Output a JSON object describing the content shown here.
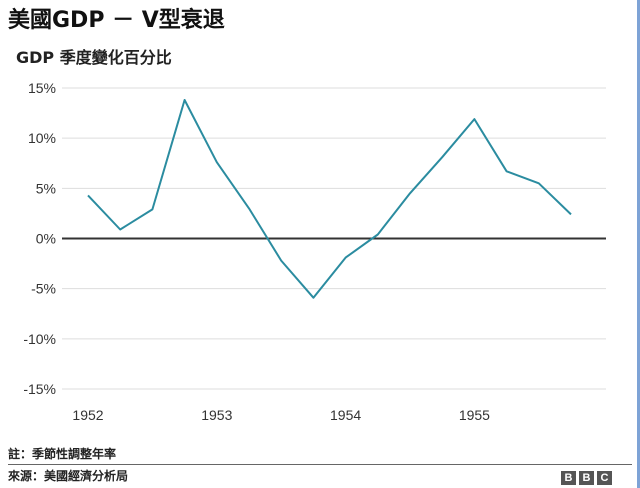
{
  "title": "美國GDP － V型衰退",
  "subtitle": "GDP 季度變化百分比",
  "note": "註：季節性調整年率",
  "source": "來源：美國經濟分析局",
  "logo": [
    "B",
    "B",
    "C"
  ],
  "colors": {
    "line": "#2b8ca0",
    "zero_line": "#333333",
    "grid": "#dddddd"
  },
  "chart_data": {
    "type": "line",
    "title": "美國GDP － V型衰退",
    "subtitle": "GDP 季度變化百分比",
    "xlabel": "",
    "ylabel": "",
    "ylim": [
      -15,
      15
    ],
    "yticks": [
      15,
      10,
      5,
      0,
      -5,
      -10,
      -15
    ],
    "ytick_labels": [
      "15%",
      "10%",
      "5%",
      "0%",
      "-5%",
      "-10%",
      "-15%"
    ],
    "xticks": [
      "1952",
      "1953",
      "1954",
      "1955"
    ],
    "x": [
      "1952 Q1",
      "1952 Q2",
      "1952 Q3",
      "1952 Q4",
      "1953 Q1",
      "1953 Q2",
      "1953 Q3",
      "1953 Q4",
      "1954 Q1",
      "1954 Q2",
      "1954 Q3",
      "1954 Q4",
      "1955 Q1",
      "1955 Q2",
      "1955 Q3",
      "1955 Q4"
    ],
    "series": [
      {
        "values": [
          4.3,
          0.9,
          2.9,
          13.8,
          7.6,
          3.0,
          -2.2,
          -5.9,
          -1.9,
          0.4,
          4.5,
          8.1,
          11.9,
          6.7,
          5.5,
          2.4
        ]
      }
    ],
    "grid": true
  }
}
